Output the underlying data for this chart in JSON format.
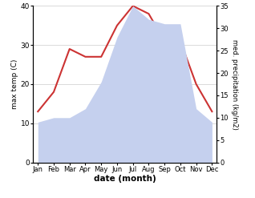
{
  "months": [
    "Jan",
    "Feb",
    "Mar",
    "Apr",
    "May",
    "Jun",
    "Jul",
    "Aug",
    "Sep",
    "Oct",
    "Nov",
    "Dec"
  ],
  "temperature": [
    13,
    18,
    29,
    27,
    27,
    35,
    40,
    38,
    31,
    31,
    20,
    13
  ],
  "precipitation": [
    9,
    10,
    10,
    12,
    18,
    28,
    35,
    32,
    31,
    31,
    12,
    9
  ],
  "temp_color": "#cc3333",
  "precip_color_fill": "#c5d0ee",
  "temp_ylim": [
    0,
    40
  ],
  "precip_ylim": [
    0,
    35
  ],
  "temp_yticks": [
    0,
    10,
    20,
    30,
    40
  ],
  "precip_yticks": [
    0,
    5,
    10,
    15,
    20,
    25,
    30,
    35
  ],
  "xlabel": "date (month)",
  "ylabel_left": "max temp (C)",
  "ylabel_right": "med. precipitation (kg/m2)",
  "background_color": "#ffffff",
  "grid_color": "#cccccc"
}
